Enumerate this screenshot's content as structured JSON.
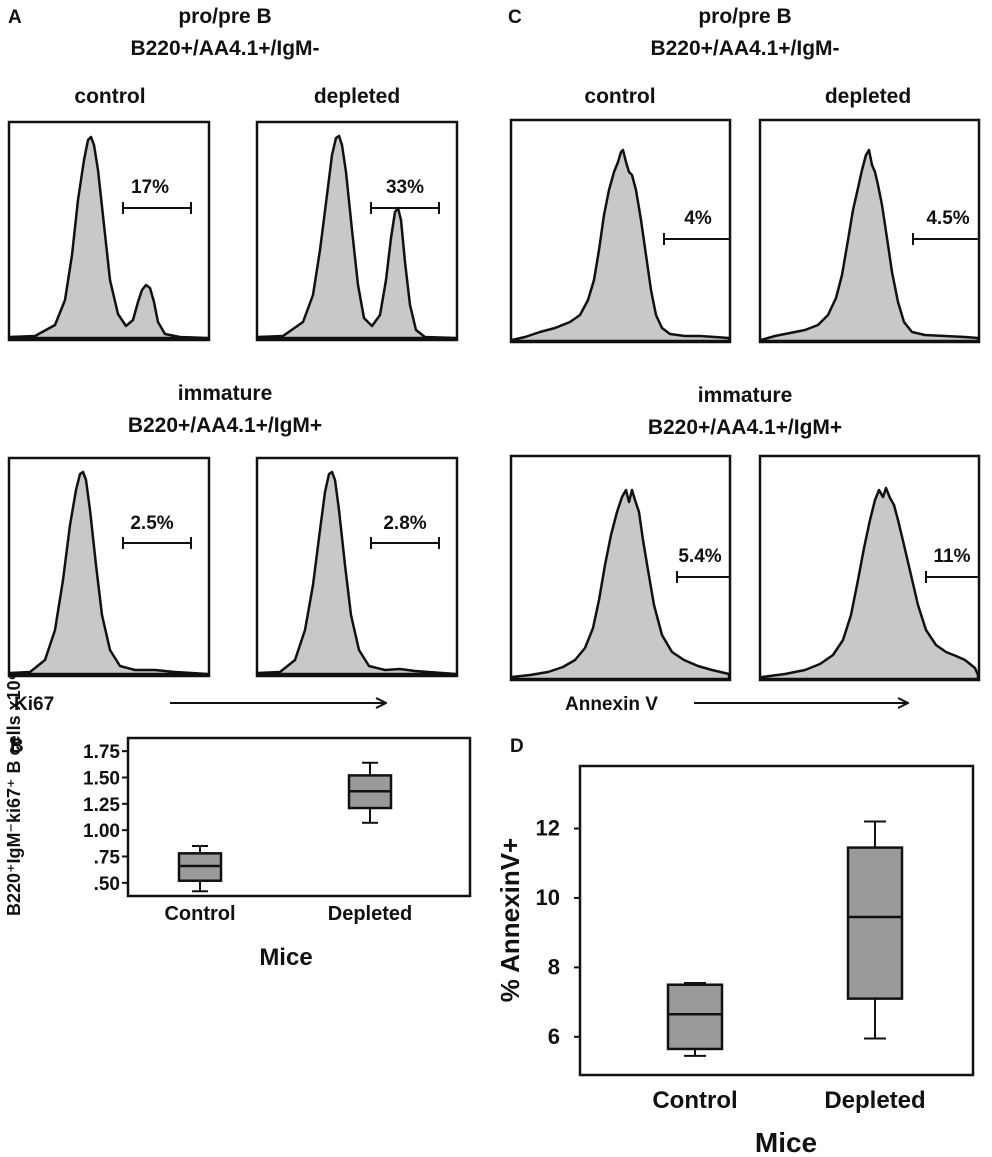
{
  "colors": {
    "fill": "#c8c8c8",
    "box": "#9a9a9a",
    "ink": "#111111"
  },
  "panels": {
    "A": {
      "letter": "A",
      "marker": "Ki67",
      "groups": [
        {
          "title1": "pro/pre B",
          "title2": "B220+/AA4.1+/IgM-",
          "col_labels": [
            "control",
            "depleted"
          ],
          "pcts": [
            "17%",
            "33%"
          ]
        },
        {
          "title1": "immature",
          "title2": "B220+/AA4.1+/IgM+",
          "col_labels": [],
          "pcts": [
            "2.5%",
            "2.8%"
          ]
        }
      ]
    },
    "C": {
      "letter": "C",
      "marker": "Annexin V",
      "groups": [
        {
          "title1": "pro/pre B",
          "title2": "B220+/AA4.1+/IgM-",
          "col_labels": [
            "control",
            "depleted"
          ],
          "pcts": [
            "4%",
            "4.5%"
          ]
        },
        {
          "title1": "immature",
          "title2": "B220+/AA4.1+/IgM+",
          "col_labels": [],
          "pcts": [
            "5.4%",
            "11%"
          ]
        }
      ]
    }
  },
  "chart_data": [
    {
      "panel": "B",
      "type": "box",
      "xlabel": "Mice",
      "ylabel": "B220⁺IgM⁻ki67⁺ B cells x10⁶",
      "categories": [
        "Control",
        "Depleted"
      ],
      "ylim": [
        0.375,
        1.875
      ],
      "yticks": [
        0.5,
        0.75,
        1.0,
        1.25,
        1.5,
        1.75
      ],
      "ytick_labels": [
        ".50",
        ".75",
        "1.00",
        "1.25",
        "1.50",
        "1.75"
      ],
      "boxes": [
        {
          "min": 0.42,
          "q1": 0.52,
          "median": 0.66,
          "q3": 0.78,
          "max": 0.85
        },
        {
          "min": 1.07,
          "q1": 1.21,
          "median": 1.37,
          "q3": 1.52,
          "max": 1.64
        }
      ]
    },
    {
      "panel": "D",
      "type": "box",
      "xlabel": "Mice",
      "ylabel": "% AnnexinV+",
      "categories": [
        "Control",
        "Depleted"
      ],
      "ylim": [
        4.9,
        13.8
      ],
      "yticks": [
        6,
        8,
        10,
        12
      ],
      "ytick_labels": [
        "6",
        "8",
        "10",
        "12"
      ],
      "boxes": [
        {
          "min": 5.45,
          "q1": 5.65,
          "median": 6.65,
          "q3": 7.5,
          "max": 7.55
        },
        {
          "min": 5.95,
          "q1": 7.1,
          "median": 9.45,
          "q3": 11.45,
          "max": 12.2
        }
      ]
    }
  ]
}
